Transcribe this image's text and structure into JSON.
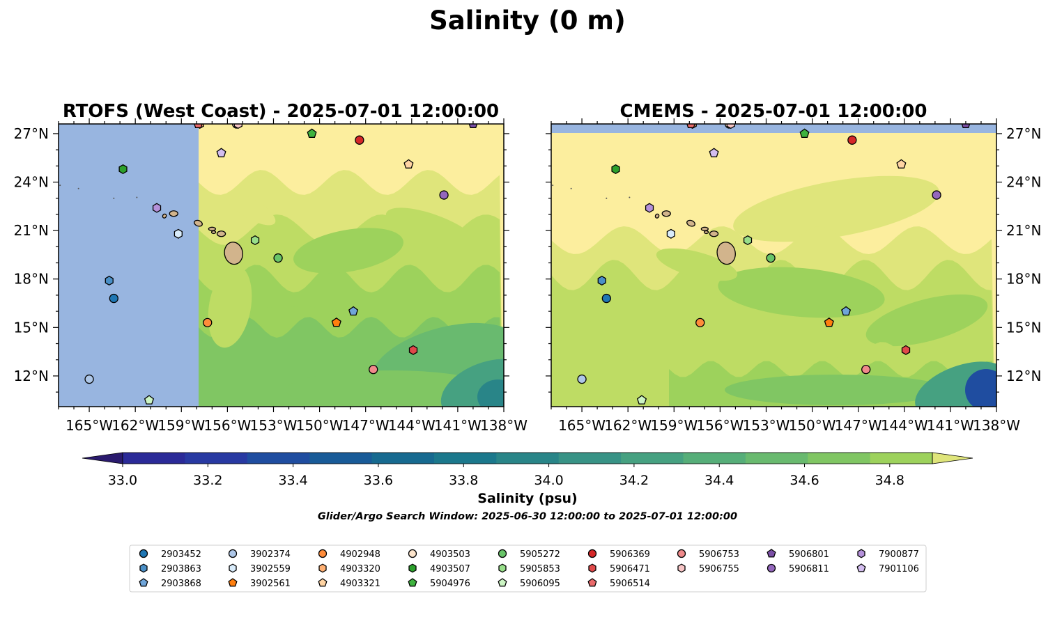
{
  "title": "Salinity (0 m)",
  "panels": [
    {
      "title": "RTOFS (West Coast) - 2025-07-01 12:00:00",
      "model": "rtofs"
    },
    {
      "title": "CMEMS - 2025-07-01 12:00:00",
      "model": "cmems"
    }
  ],
  "colorbar": {
    "label": "Salinity (psu)",
    "ticks": [
      "33.0",
      "33.2",
      "33.4",
      "33.6",
      "33.8",
      "34.0",
      "34.2",
      "34.4",
      "34.6",
      "34.8"
    ],
    "range": [
      32.9,
      34.9
    ],
    "colors": [
      "#2a1a6e",
      "#2b2a98",
      "#2839a2",
      "#1f4da0",
      "#195b98",
      "#176a90",
      "#1b788c",
      "#298588",
      "#389386",
      "#46a181",
      "#56ae79",
      "#69ba6f",
      "#80c663",
      "#9dd25c",
      "#bedc64",
      "#dfe57b"
    ],
    "extend": "both"
  },
  "note": "Glider/Argo Search Window: 2025-06-30 12:00:00 to 2025-07-01 12:00:00",
  "colors": {
    "land": "#d2b48c",
    "nodata": "#98b5e0",
    "salty": "#fcee9e"
  },
  "chart_data": {
    "type": "map",
    "x_ticks": [
      "165°W",
      "162°W",
      "159°W",
      "156°W",
      "153°W",
      "150°W",
      "147°W",
      "144°W",
      "141°W",
      "138°W"
    ],
    "y_ticks": [
      "27°N",
      "24°N",
      "21°N",
      "18°N",
      "15°N",
      "12°N"
    ],
    "lon_range": [
      -167,
      -138
    ],
    "lat_range": [
      10.1,
      27.6
    ],
    "floats": [
      {
        "id": "2903452",
        "lon": -163.4,
        "lat": 16.8,
        "color": "#1f77b4",
        "marker": "circle"
      },
      {
        "id": "2903863",
        "lon": -163.7,
        "lat": 17.9,
        "color": "#4a8fc6",
        "marker": "hexagon"
      },
      {
        "id": "2903868",
        "lon": -147.8,
        "lat": 16.0,
        "color": "#6fa5d9",
        "marker": "pentagon"
      },
      {
        "id": "3902374",
        "lon": -165.0,
        "lat": 11.8,
        "color": "#aec7e8",
        "marker": "circle"
      },
      {
        "id": "3902559",
        "lon": -159.2,
        "lat": 20.8,
        "color": "#d9ecfb",
        "marker": "hexagon"
      },
      {
        "id": "3902561",
        "lon": -148.9,
        "lat": 15.3,
        "color": "#ff7f0e",
        "marker": "pentagon"
      },
      {
        "id": "4902948",
        "lon": -157.3,
        "lat": 15.3,
        "color": "#ff8c3a",
        "marker": "circle"
      },
      {
        "id": "4903320",
        "lon": -157.8,
        "lat": 27.6,
        "color": "#ffb073",
        "marker": "hexagon"
      },
      {
        "id": "4903321",
        "lon": -144.2,
        "lat": 25.1,
        "color": "#ffd4a3",
        "marker": "pentagon"
      },
      {
        "id": "4903503",
        "lon": -155.4,
        "lat": 27.6,
        "color": "#fde5cc",
        "marker": "circle"
      },
      {
        "id": "4903507",
        "lon": -162.8,
        "lat": 24.8,
        "color": "#2ca02c",
        "marker": "hexagon"
      },
      {
        "id": "5904976",
        "lon": -150.5,
        "lat": 27.0,
        "color": "#3fb33f",
        "marker": "pentagon"
      },
      {
        "id": "5905272",
        "lon": -152.7,
        "lat": 19.3,
        "color": "#69c569",
        "marker": "circle"
      },
      {
        "id": "5905853",
        "lon": -154.2,
        "lat": 20.4,
        "color": "#98df8a",
        "marker": "hexagon"
      },
      {
        "id": "5906095",
        "lon": -161.1,
        "lat": 10.5,
        "color": "#ccf5c4",
        "marker": "pentagon"
      },
      {
        "id": "5906369",
        "lon": -147.4,
        "lat": 26.6,
        "color": "#d62728",
        "marker": "circle"
      },
      {
        "id": "5906471",
        "lon": -143.9,
        "lat": 13.6,
        "color": "#e0494a",
        "marker": "hexagon"
      },
      {
        "id": "5906514",
        "lon": -157.9,
        "lat": 27.6,
        "color": "#ea6a6b",
        "marker": "pentagon"
      },
      {
        "id": "5906753",
        "lon": -146.5,
        "lat": 12.4,
        "color": "#f08a8b",
        "marker": "circle"
      },
      {
        "id": "5906755",
        "lon": -155.3,
        "lat": 27.6,
        "color": "#f7c5c6",
        "marker": "hexagon"
      },
      {
        "id": "5906801",
        "lon": -140.0,
        "lat": 27.6,
        "color": "#7b4fa6",
        "marker": "pentagon"
      },
      {
        "id": "5906811",
        "lon": -141.9,
        "lat": 23.2,
        "color": "#9467bd",
        "marker": "circle"
      },
      {
        "id": "7900877",
        "lon": -160.6,
        "lat": 22.4,
        "color": "#b591da",
        "marker": "hexagon"
      },
      {
        "id": "7901106",
        "lon": -156.4,
        "lat": 25.8,
        "color": "#d3bdef",
        "marker": "pentagon"
      }
    ]
  }
}
